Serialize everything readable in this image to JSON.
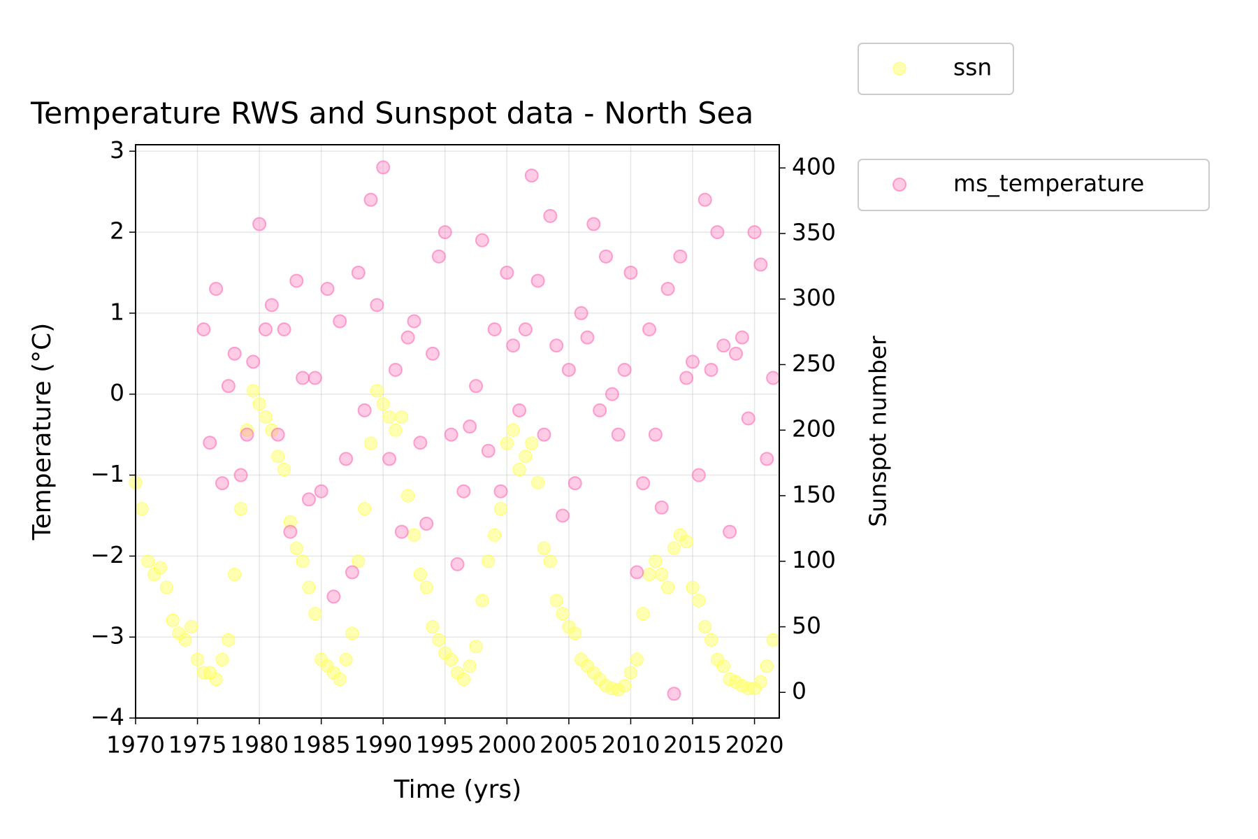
{
  "chart_data": {
    "type": "scatter",
    "title": "Temperature RWS and Sunspot data - North Sea",
    "x_label": "Time (yrs)",
    "y_label": "Temperature (°C)",
    "y2_label": "Sunspot number",
    "xlim": [
      1970,
      2022
    ],
    "xticks": [
      1970,
      1975,
      1980,
      1985,
      1990,
      1995,
      2000,
      2005,
      2010,
      2015,
      2020
    ],
    "ylim": [
      -4,
      3.08
    ],
    "yticks": [
      {
        "value": -4,
        "label": "−4"
      },
      {
        "value": -3,
        "label": "−3"
      },
      {
        "value": -2,
        "label": "−2"
      },
      {
        "value": -1,
        "label": "−1"
      },
      0,
      1,
      2,
      3
    ],
    "y2lim": [
      -19.6,
      417.7
    ],
    "y2ticks": [
      0,
      50,
      100,
      150,
      200,
      250,
      300,
      350,
      400
    ],
    "grid": true,
    "series": [
      {
        "name": "ssn",
        "color": "#ffff66",
        "axis": "y2",
        "x": [
          1970,
          1970.5,
          1971,
          1971.5,
          1972,
          1972.5,
          1973,
          1973.5,
          1974,
          1974.5,
          1975,
          1975.5,
          1976,
          1976.5,
          1977,
          1977.5,
          1978,
          1978.5,
          1979,
          1979.5,
          1980,
          1980.5,
          1981,
          1981.5,
          1982,
          1982.5,
          1983,
          1983.5,
          1984,
          1984.5,
          1985,
          1985.5,
          1986,
          1986.5,
          1987,
          1987.5,
          1988,
          1988.5,
          1989,
          1989.5,
          1990,
          1990.5,
          1991,
          1991.5,
          1992,
          1992.5,
          1993,
          1993.5,
          1994,
          1994.5,
          1995,
          1995.5,
          1996,
          1996.5,
          1997,
          1997.5,
          1998,
          1998.5,
          1999,
          1999.5,
          2000,
          2000.5,
          2001,
          2001.5,
          2002,
          2002.5,
          2003,
          2003.5,
          2004,
          2004.5,
          2005,
          2005.5,
          2006,
          2006.5,
          2007,
          2007.5,
          2008,
          2008.5,
          2009,
          2009.5,
          2010,
          2010.5,
          2011,
          2011.5,
          2012,
          2012.5,
          2013,
          2013.5,
          2014,
          2014.5,
          2015,
          2015.5,
          2016,
          2016.5,
          2017,
          2017.5,
          2018,
          2018.5,
          2019,
          2019.5,
          2020,
          2020.5,
          2021,
          2021.5
        ],
        "values": [
          160,
          140,
          100,
          90,
          95,
          80,
          55,
          45,
          40,
          50,
          25,
          15,
          15,
          10,
          25,
          40,
          90,
          140,
          200,
          230,
          220,
          210,
          200,
          180,
          170,
          130,
          110,
          100,
          80,
          60,
          25,
          20,
          15,
          10,
          25,
          45,
          100,
          140,
          190,
          230,
          220,
          210,
          200,
          210,
          150,
          120,
          90,
          80,
          50,
          40,
          30,
          25,
          15,
          10,
          20,
          35,
          70,
          100,
          120,
          140,
          190,
          200,
          170,
          180,
          190,
          160,
          110,
          100,
          70,
          60,
          50,
          45,
          25,
          20,
          15,
          10,
          5,
          3,
          2,
          5,
          15,
          25,
          60,
          90,
          100,
          90,
          80,
          110,
          120,
          115,
          80,
          70,
          50,
          40,
          25,
          20,
          10,
          8,
          5,
          3,
          3,
          8,
          20,
          40
        ]
      },
      {
        "name": "ms_temperature",
        "color": "#ff69b4",
        "axis": "y",
        "x": [
          1975.5,
          1976,
          1976.5,
          1977,
          1977.5,
          1978,
          1978.5,
          1979,
          1979.5,
          1980,
          1980.5,
          1981,
          1981.5,
          1982,
          1982.5,
          1983,
          1983.5,
          1984,
          1984.5,
          1985,
          1985.5,
          1986,
          1986.5,
          1987,
          1987.5,
          1988,
          1988.5,
          1989,
          1989.5,
          1990,
          1990.5,
          1991,
          1991.5,
          1992,
          1992.5,
          1993,
          1993.5,
          1994,
          1994.5,
          1995,
          1995.5,
          1996,
          1996.5,
          1997,
          1997.5,
          1998,
          1998.5,
          1999,
          1999.5,
          2000,
          2000.5,
          2001,
          2001.5,
          2002,
          2002.5,
          2003,
          2003.5,
          2004,
          2004.5,
          2005,
          2005.5,
          2006,
          2006.5,
          2007,
          2007.5,
          2008,
          2008.5,
          2009,
          2009.5,
          2010,
          2010.5,
          2011,
          2011.5,
          2012,
          2012.5,
          2013,
          2013.5,
          2014,
          2014.5,
          2015,
          2015.5,
          2016,
          2016.5,
          2017,
          2017.5,
          2018,
          2018.5,
          2019,
          2019.5,
          2020,
          2020.5,
          2021,
          2021.5
        ],
        "values": [
          0.8,
          -0.6,
          1.3,
          -1.1,
          0.1,
          0.5,
          -1.0,
          -0.5,
          0.4,
          2.1,
          0.8,
          1.1,
          -0.5,
          0.8,
          -1.7,
          1.4,
          0.2,
          -1.3,
          0.2,
          -1.2,
          1.3,
          -2.5,
          0.9,
          -0.8,
          -2.2,
          1.5,
          -0.2,
          2.4,
          1.1,
          2.8,
          -0.8,
          0.3,
          -1.7,
          0.7,
          0.9,
          -0.6,
          -1.6,
          0.5,
          1.7,
          2.0,
          -0.5,
          -2.1,
          -1.2,
          -0.4,
          0.1,
          1.9,
          -0.7,
          0.8,
          -1.2,
          1.5,
          0.6,
          -0.2,
          0.8,
          2.7,
          1.4,
          -0.5,
          2.2,
          0.6,
          -1.5,
          0.3,
          -1.1,
          1.0,
          0.7,
          2.1,
          -0.2,
          1.7,
          0.0,
          -0.5,
          0.3,
          1.5,
          -2.2,
          -1.1,
          0.8,
          -0.5,
          -1.4,
          1.3,
          -3.7,
          1.7,
          0.2,
          0.4,
          -1.0,
          2.4,
          0.3,
          2.0,
          0.6,
          -1.7,
          0.5,
          0.7,
          -0.3,
          2.0,
          1.6,
          -0.8,
          0.2
        ]
      }
    ]
  }
}
